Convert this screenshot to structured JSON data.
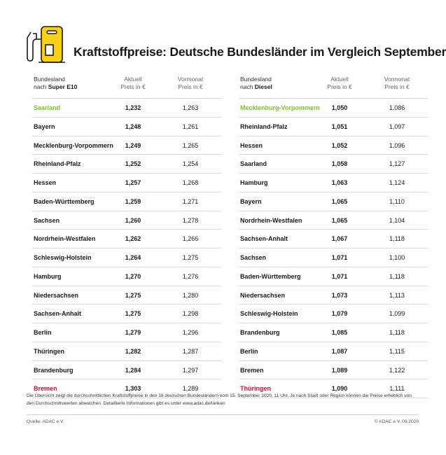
{
  "title": "Kraftstoffpreise: Deutsche Bundesländer im Vergleich September",
  "colors": {
    "accent_yellow": "#f7d117",
    "lowest_green": "#7dc22e",
    "highest_red": "#c8102e"
  },
  "logo_icon": "fuel-pump-icon",
  "left_table": {
    "header": {
      "col1_line1": "Bundesland",
      "col1_line2_prefix": "nach ",
      "col1_line2_bold": "Super E10",
      "col2_line1": "Aktuell",
      "col2_line2": "Preis in €",
      "col3_line1": "Vormonat",
      "col3_line2": "Preis in €"
    },
    "rows": [
      {
        "name": "Saarland",
        "aktuell": "1,232",
        "vormonat": "1,263",
        "highlight": "green"
      },
      {
        "name": "Bayern",
        "aktuell": "1,248",
        "vormonat": "1,261"
      },
      {
        "name": "Mecklenburg-Vorpommern",
        "aktuell": "1,249",
        "vormonat": "1,265"
      },
      {
        "name": "Rheinland-Pfalz",
        "aktuell": "1,252",
        "vormonat": "1,254"
      },
      {
        "name": "Hessen",
        "aktuell": "1,257",
        "vormonat": "1,268"
      },
      {
        "name": "Baden-Württemberg",
        "aktuell": "1,259",
        "vormonat": "1,271"
      },
      {
        "name": "Sachsen",
        "aktuell": "1,260",
        "vormonat": "1,278"
      },
      {
        "name": "Nordrhein-Westfalen",
        "aktuell": "1,262",
        "vormonat": "1,266"
      },
      {
        "name": "Schleswig-Holstein",
        "aktuell": "1,264",
        "vormonat": "1,275"
      },
      {
        "name": "Hamburg",
        "aktuell": "1,270",
        "vormonat": "1,276"
      },
      {
        "name": "Niedersachsen",
        "aktuell": "1,275",
        "vormonat": "1,280"
      },
      {
        "name": "Sachsen-Anhalt",
        "aktuell": "1,275",
        "vormonat": "1,298"
      },
      {
        "name": "Berlin",
        "aktuell": "1,279",
        "vormonat": "1,296"
      },
      {
        "name": "Thüringen",
        "aktuell": "1,282",
        "vormonat": "1,287"
      },
      {
        "name": "Brandenburg",
        "aktuell": "1,284",
        "vormonat": "1,297"
      },
      {
        "name": "Bremen",
        "aktuell": "1,303",
        "vormonat": "1,289",
        "highlight": "red"
      }
    ]
  },
  "right_table": {
    "header": {
      "col1_line1": "Bundesland",
      "col1_line2_prefix": "nach ",
      "col1_line2_bold": "Diesel",
      "col2_line1": "Aktuell",
      "col2_line2": "Preis in €",
      "col3_line1": "Vormonat",
      "col3_line2": "Preis in €"
    },
    "rows": [
      {
        "name": "Mecklenburg-Vorpommern",
        "aktuell": "1,050",
        "vormonat": "1,086",
        "highlight": "green"
      },
      {
        "name": "Rheinland-Pfalz",
        "aktuell": "1,051",
        "vormonat": "1,097"
      },
      {
        "name": "Hessen",
        "aktuell": "1,052",
        "vormonat": "1,096"
      },
      {
        "name": "Saarland",
        "aktuell": "1,058",
        "vormonat": "1,127"
      },
      {
        "name": "Hamburg",
        "aktuell": "1,063",
        "vormonat": "1,124"
      },
      {
        "name": "Bayern",
        "aktuell": "1,065",
        "vormonat": "1,110"
      },
      {
        "name": "Nordrhein-Westfalen",
        "aktuell": "1,065",
        "vormonat": "1,104"
      },
      {
        "name": "Sachsen-Anhalt",
        "aktuell": "1,067",
        "vormonat": "1,118"
      },
      {
        "name": "Sachsen",
        "aktuell": "1,071",
        "vormonat": "1,100"
      },
      {
        "name": "Baden-Württemberg",
        "aktuell": "1,071",
        "vormonat": "1,118"
      },
      {
        "name": "Niedersachsen",
        "aktuell": "1,073",
        "vormonat": "1,113"
      },
      {
        "name": "Schleswig-Holstein",
        "aktuell": "1,079",
        "vormonat": "1,099"
      },
      {
        "name": "Brandenburg",
        "aktuell": "1,085",
        "vormonat": "1,118"
      },
      {
        "name": "Berlin",
        "aktuell": "1,087",
        "vormonat": "1,115"
      },
      {
        "name": "Bremen",
        "aktuell": "1,089",
        "vormonat": "1,122"
      },
      {
        "name": "Thüringen",
        "aktuell": "1,090",
        "vormonat": "1,111",
        "highlight": "red"
      }
    ]
  },
  "footnote": "Die Übersicht zeigt die durchschnittlichen Kraftstoffpreise in den 16 deutschen Bundesländern vom 15. September 2020, 11 Uhr.  Je nach Stadt oder Region können die Preise erheblich von den Durchschnittswerten abweichen. Detaillierte Informationen gibt es unter www.adac.de/tanken",
  "source": "Quelle: ADAC e.V.",
  "copyright": "© ADAC e.V. 09.2020"
}
